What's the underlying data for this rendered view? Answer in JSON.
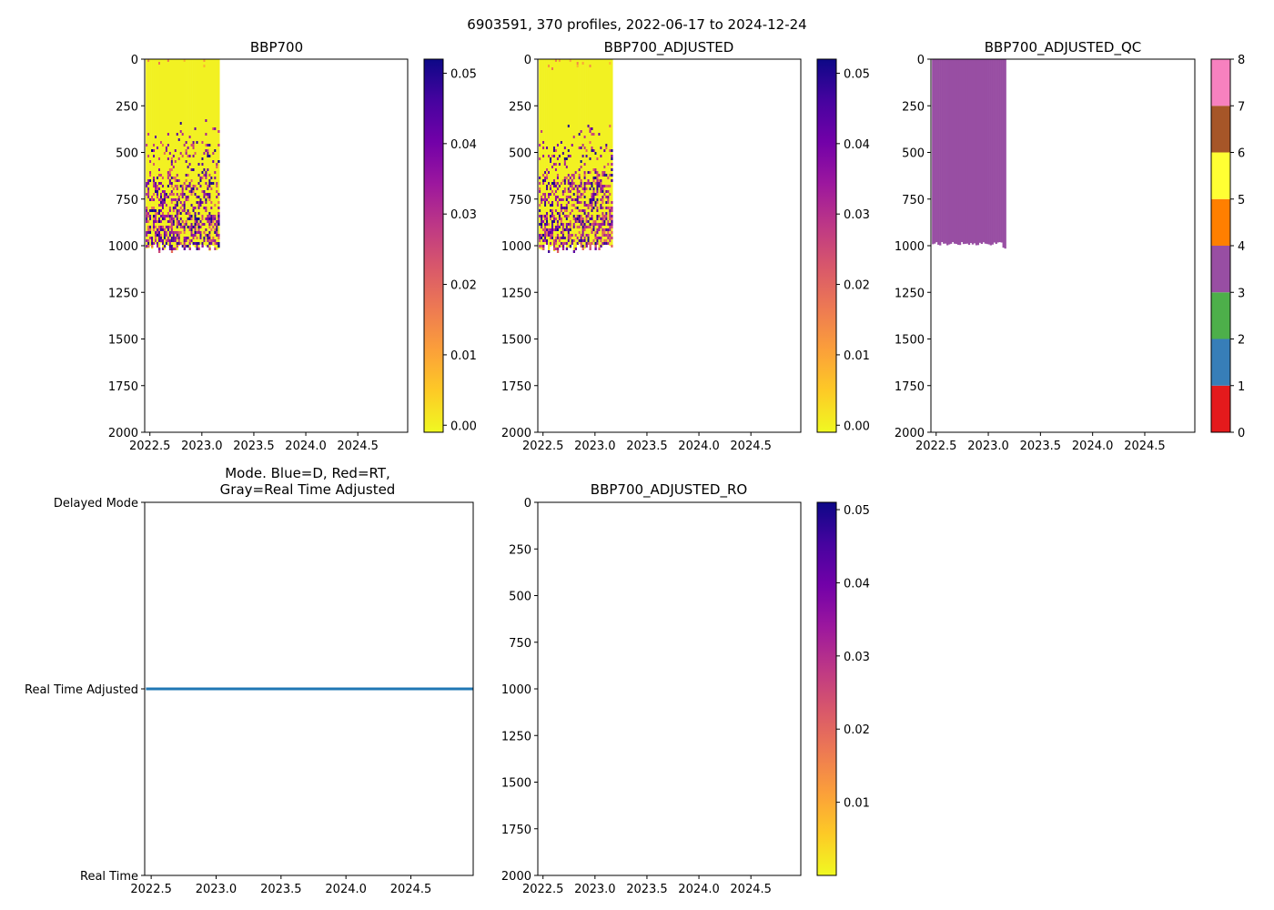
{
  "figure_title": "6903591, 370 profiles, 2022-06-17 to 2024-12-24",
  "colors": {
    "qc": [
      "#e41a1c",
      "#377eb8",
      "#4daf4a",
      "#984ea3",
      "#ff7f00",
      "#ffff33",
      "#a65628",
      "#f781bf",
      "#999999"
    ],
    "qc_fill": "#984ea3",
    "mode_line": "#1f77b4",
    "plasma_stops": [
      "#f0f921",
      "#fdca26",
      "#fb9f3a",
      "#ed7953",
      "#d8576b",
      "#bd3786",
      "#9c179e",
      "#7201a8",
      "#46039f",
      "#0d0887"
    ]
  },
  "chart_data": [
    {
      "id": "bbp700",
      "type": "heatmap",
      "title": "BBP700",
      "xlim": [
        2022.45,
        2024.98
      ],
      "ylim": [
        2000,
        0
      ],
      "xticks": [
        "2022.5",
        "2023.0",
        "2023.5",
        "2024.0",
        "2024.5"
      ],
      "yticks": [
        "0",
        "250",
        "500",
        "750",
        "1000",
        "1250",
        "1500",
        "1750",
        "2000"
      ],
      "data_x_range": [
        2022.46,
        2023.17
      ],
      "data_depth_range": [
        0,
        1000
      ],
      "colorbar": {
        "min": -0.001,
        "max": 0.052,
        "ticks": [
          "0.00",
          "0.01",
          "0.02",
          "0.03",
          "0.04",
          "0.05"
        ],
        "cmap": "plasma_r"
      }
    },
    {
      "id": "bbp700_adjusted",
      "type": "heatmap",
      "title": "BBP700_ADJUSTED",
      "xlim": [
        2022.45,
        2024.98
      ],
      "ylim": [
        2000,
        0
      ],
      "xticks": [
        "2022.5",
        "2023.0",
        "2023.5",
        "2024.0",
        "2024.5"
      ],
      "yticks": [
        "0",
        "250",
        "500",
        "750",
        "1000",
        "1250",
        "1500",
        "1750",
        "2000"
      ],
      "data_x_range": [
        2022.46,
        2023.17
      ],
      "data_depth_range": [
        0,
        1000
      ],
      "colorbar": {
        "min": -0.001,
        "max": 0.052,
        "ticks": [
          "0.00",
          "0.01",
          "0.02",
          "0.03",
          "0.04",
          "0.05"
        ],
        "cmap": "plasma_r"
      }
    },
    {
      "id": "bbp700_adjusted_qc",
      "type": "heatmap",
      "title": "BBP700_ADJUSTED_QC",
      "xlim": [
        2022.45,
        2024.98
      ],
      "ylim": [
        2000,
        0
      ],
      "xticks": [
        "2022.5",
        "2023.0",
        "2023.5",
        "2024.0",
        "2024.5"
      ],
      "yticks": [
        "0",
        "250",
        "500",
        "750",
        "1000",
        "1250",
        "1500",
        "1750",
        "2000"
      ],
      "data_x_range": [
        2022.46,
        2023.17
      ],
      "data_depth_range": [
        0,
        985
      ],
      "qc_value": 3,
      "colorbar": {
        "min": 0,
        "max": 8,
        "ticks": [
          "0",
          "1",
          "2",
          "3",
          "4",
          "5",
          "6",
          "7",
          "8"
        ],
        "cmap": "qc"
      }
    },
    {
      "id": "mode",
      "type": "line",
      "title_line1": "Mode. Blue=D, Red=RT,",
      "title_line2": "Gray=Real Time Adjusted",
      "xlim": [
        2022.45,
        2024.98
      ],
      "ylim": [
        0,
        2
      ],
      "xticks": [
        "2022.5",
        "2023.0",
        "2023.5",
        "2024.0",
        "2024.5"
      ],
      "ytick_labels": [
        "Real Time",
        "Real Time Adjusted",
        "Delayed Mode"
      ],
      "series": [
        {
          "name": "mode",
          "x": [
            2022.46,
            2024.98
          ],
          "y": [
            1,
            1
          ]
        }
      ]
    },
    {
      "id": "bbp700_adjusted_ro",
      "type": "heatmap",
      "title": "BBP700_ADJUSTED_RO",
      "xlim": [
        2022.45,
        2024.98
      ],
      "ylim": [
        2000,
        0
      ],
      "xticks": [
        "2022.5",
        "2023.0",
        "2023.5",
        "2024.0",
        "2024.5"
      ],
      "yticks": [
        "0",
        "250",
        "500",
        "750",
        "1000",
        "1250",
        "1500",
        "1750",
        "2000"
      ],
      "colorbar": {
        "min": 0.0,
        "max": 0.051,
        "ticks": [
          "0.01",
          "0.02",
          "0.03",
          "0.04",
          "0.05"
        ],
        "cmap": "plasma_r"
      }
    }
  ]
}
